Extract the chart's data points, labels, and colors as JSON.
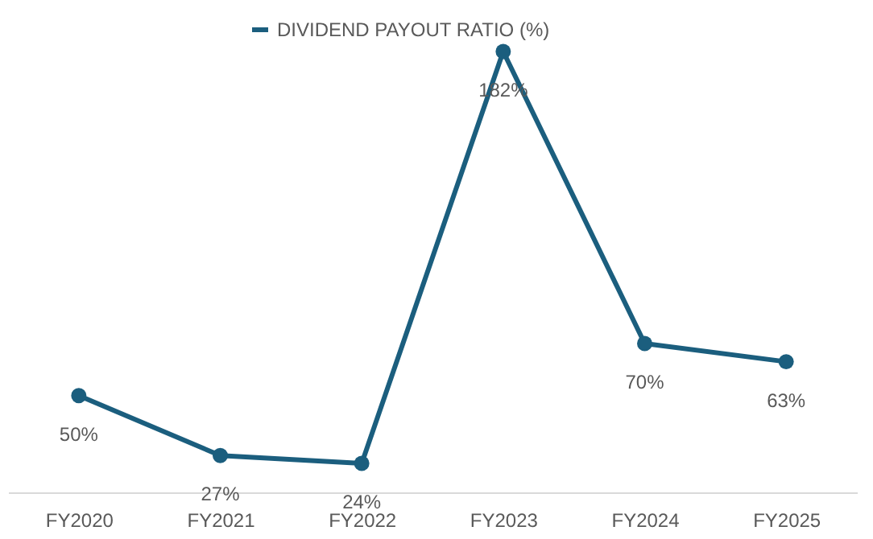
{
  "chart_data": {
    "type": "line",
    "categories": [
      "FY2020",
      "FY2021",
      "FY2022",
      "FY2023",
      "FY2024",
      "FY2025"
    ],
    "series": [
      {
        "name": "DIVIDEND PAYOUT RATIO (%)",
        "color": "#1b5e7e",
        "values": [
          50,
          27,
          24,
          182,
          70,
          63
        ],
        "value_labels": [
          "50%",
          "27%",
          "24%",
          "182%",
          "70%",
          "63%"
        ]
      }
    ],
    "marker": "circle",
    "legend": "top",
    "grid": false
  }
}
